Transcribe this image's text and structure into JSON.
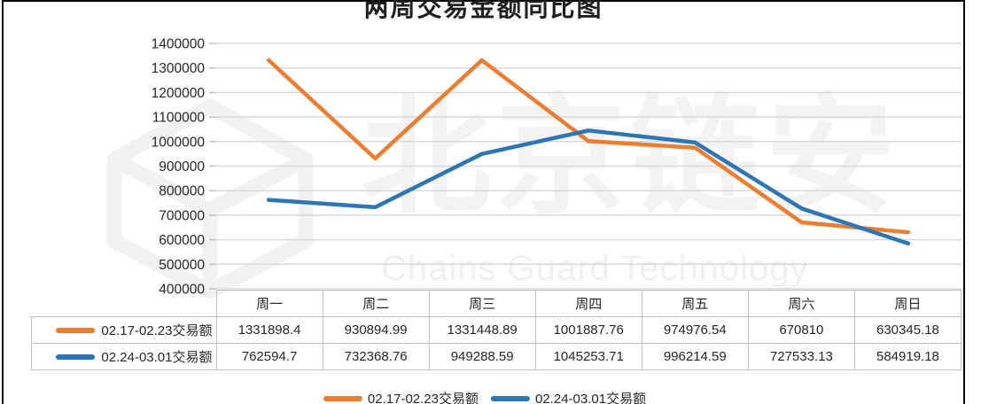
{
  "title": "两周交易金额同比图",
  "watermark": {
    "logo": "cube-logo",
    "cn": "北京链安",
    "en": "Chains Guard Technology"
  },
  "colors": {
    "series1": "#ED7D31",
    "series2": "#2E75B6",
    "gridline": "#D9D9D9",
    "tick": "#BFBFBF",
    "table_border": "#BFBFBF",
    "text": "#262626",
    "frame_border": "#000000"
  },
  "chart_data": {
    "type": "line",
    "title": "两周交易金额同比图",
    "categories": [
      "周一",
      "周二",
      "周三",
      "周四",
      "周五",
      "周六",
      "周日"
    ],
    "series": [
      {
        "name": "02.17-02.23交易额",
        "color": "#ED7D31",
        "values": [
          1331898.4,
          930894.99,
          1331448.89,
          1001887.76,
          974976.54,
          670810,
          630345.18
        ]
      },
      {
        "name": "02.24-03.01交易额",
        "color": "#2E75B6",
        "values": [
          762594.7,
          732368.76,
          949288.59,
          1045253.71,
          996214.59,
          727533.13,
          584919.18
        ]
      }
    ],
    "ylim": [
      400000,
      1400000
    ],
    "ytick_step": 100000,
    "ytick_labels": [
      "1400000",
      "1300000",
      "1200000",
      "1100000",
      "1000000",
      "900000",
      "800000",
      "700000",
      "600000",
      "500000",
      "400000"
    ],
    "grid": true,
    "legend_position": "bottom",
    "data_table_shown": true
  },
  "table": {
    "headers": [
      "周一",
      "周二",
      "周三",
      "周四",
      "周五",
      "周六",
      "周日"
    ],
    "rows": [
      {
        "label": "02.17-02.23交易额",
        "color": "#ED7D31",
        "values": [
          "1331898.4",
          "930894.99",
          "1331448.89",
          "1001887.76",
          "974976.54",
          "670810",
          "630345.18"
        ]
      },
      {
        "label": "02.24-03.01交易额",
        "color": "#2E75B6",
        "values": [
          "762594.7",
          "732368.76",
          "949288.59",
          "1045253.71",
          "996214.59",
          "727533.13",
          "584919.18"
        ]
      }
    ]
  },
  "legend": {
    "items": [
      {
        "label": "02.17-02.23交易额",
        "color": "#ED7D31"
      },
      {
        "label": "02.24-03.01交易额",
        "color": "#2E75B6"
      }
    ]
  }
}
